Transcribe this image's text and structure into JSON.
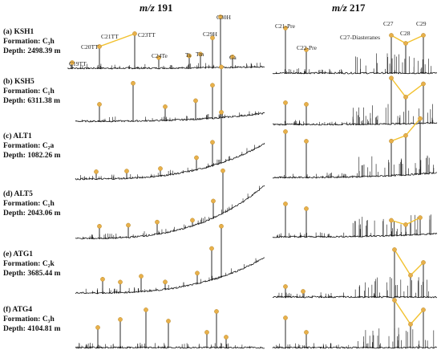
{
  "columns": {
    "left": {
      "prefix": "m/z",
      "value": "191"
    },
    "right": {
      "prefix": "m/z",
      "value": "217"
    }
  },
  "samples": [
    {
      "name": "(a) KSH1",
      "formation_label": "Formation:",
      "formation": "C₃h",
      "depth_label": "Depth:",
      "depth": "2498.39 m"
    },
    {
      "name": "(b) KSH5",
      "formation_label": "Formation:",
      "formation": "C₁h",
      "depth_label": "Depth:",
      "depth": "6311.38 m"
    },
    {
      "name": "(c) ALT1",
      "formation_label": "Formation:",
      "formation": "C₂a",
      "depth_label": "Depth:",
      "depth": "1082.26 m"
    },
    {
      "name": "(d) ALT5",
      "formation_label": "Formation:",
      "formation": "C₁h",
      "depth_label": "Depth:",
      "depth": "2043.06 m"
    },
    {
      "name": "(e) ATG1",
      "formation_label": "Formation:",
      "formation": "C₂k",
      "depth_label": "Depth:",
      "depth": "3685.44 m"
    },
    {
      "name": "(f) ATG4",
      "formation_label": "Formation:",
      "formation": "C₃h",
      "depth_label": "Depth:",
      "depth": "4104.81 m"
    }
  ],
  "peak_labels": {
    "m191": [
      "C19TT",
      "C20TT",
      "C21TT",
      "C23TT",
      "C24Te",
      "Ts",
      "Tm",
      "C29H",
      "C30H",
      "Ga"
    ],
    "m217": [
      "C21-Pre",
      "C22-Pre",
      "C27-Diasteranes",
      "C27",
      "C28",
      "C29"
    ]
  },
  "colors": {
    "marker": "#e8b04a",
    "marker_stroke": "#b98a2c",
    "link_line": "#f2c12e",
    "trace": "#111111"
  }
}
